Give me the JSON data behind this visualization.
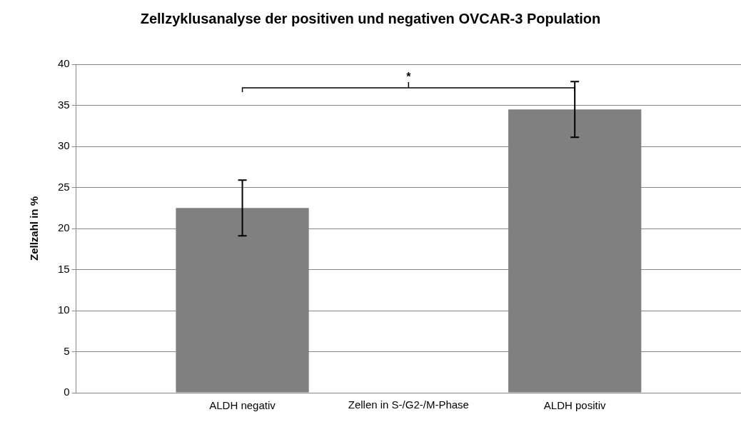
{
  "chart_data": {
    "type": "bar",
    "title": "Zellzyklusanalyse der positiven und negativen OVCAR-3 Population",
    "xlabel": "Zellen in S-/G2-/M-Phase",
    "ylabel": "Zellzahl in %",
    "categories": [
      "ALDH negativ",
      "ALDH positiv"
    ],
    "values": [
      22.5,
      34.5
    ],
    "errors": [
      3.4,
      3.4
    ],
    "color": "#808080",
    "ylim": [
      0,
      40
    ],
    "yticks": [
      0,
      5,
      10,
      15,
      20,
      25,
      30,
      35,
      40
    ],
    "grid": "y",
    "legend": false,
    "annotations": [
      "*"
    ]
  }
}
